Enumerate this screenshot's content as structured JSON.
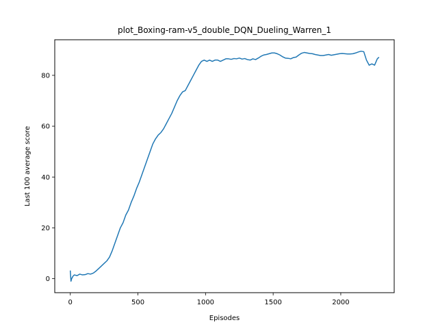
{
  "chart_data": {
    "type": "line",
    "title": "plot_Boxing-ram-v5_double_DQN_Dueling_Warren_1",
    "xlabel": "Episodes",
    "ylabel": "Last 100 average score",
    "xlim": [
      -115,
      2395
    ],
    "ylim": [
      -5.5,
      94
    ],
    "xticks": [
      0,
      500,
      1000,
      1500,
      2000
    ],
    "yticks": [
      0,
      20,
      40,
      60,
      80
    ],
    "grid": false,
    "legend": "none",
    "series": [
      {
        "color": "#1f77b4",
        "x": [
          0,
          5,
          10,
          20,
          30,
          50,
          70,
          90,
          110,
          130,
          150,
          170,
          190,
          210,
          230,
          250,
          270,
          290,
          310,
          330,
          350,
          370,
          390,
          410,
          430,
          450,
          470,
          490,
          510,
          530,
          550,
          570,
          590,
          610,
          630,
          650,
          670,
          690,
          710,
          730,
          750,
          770,
          790,
          810,
          830,
          850,
          870,
          890,
          910,
          930,
          950,
          970,
          990,
          1010,
          1030,
          1050,
          1070,
          1090,
          1110,
          1130,
          1150,
          1170,
          1190,
          1210,
          1230,
          1250,
          1270,
          1290,
          1310,
          1330,
          1350,
          1370,
          1390,
          1410,
          1430,
          1450,
          1470,
          1490,
          1510,
          1530,
          1550,
          1570,
          1590,
          1610,
          1630,
          1650,
          1670,
          1690,
          1710,
          1730,
          1750,
          1770,
          1790,
          1810,
          1830,
          1850,
          1870,
          1890,
          1910,
          1930,
          1950,
          1970,
          1990,
          2010,
          2030,
          2050,
          2070,
          2090,
          2110,
          2130,
          2150,
          2170,
          2190,
          2210,
          2230,
          2250,
          2270,
          2280
        ],
        "y": [
          3,
          -1,
          0,
          1,
          1.5,
          1.2,
          1.8,
          1.5,
          1.6,
          2,
          1.8,
          2.2,
          3,
          4,
          5,
          6,
          7,
          8.5,
          11,
          14,
          17,
          20,
          22,
          25,
          27,
          30,
          32.5,
          35.5,
          38,
          41,
          44,
          47,
          50,
          53,
          55,
          56.5,
          57.5,
          59,
          61,
          63,
          65,
          67.5,
          70,
          72,
          73.5,
          74,
          76,
          78,
          80,
          82,
          84,
          85.5,
          86,
          85.5,
          86,
          85.5,
          86,
          86,
          85.5,
          86,
          86.5,
          86.5,
          86.3,
          86.6,
          86.5,
          86.8,
          86.4,
          86.6,
          86.2,
          86,
          86.5,
          86.2,
          86.8,
          87.5,
          88,
          88.2,
          88.5,
          88.8,
          88.8,
          88.5,
          88,
          87.3,
          86.8,
          86.7,
          86.5,
          87,
          87.2,
          88,
          88.7,
          89,
          88.8,
          88.6,
          88.5,
          88.2,
          88,
          87.8,
          87.8,
          88,
          88.2,
          87.9,
          88.1,
          88.3,
          88.5,
          88.6,
          88.5,
          88.4,
          88.4,
          88.5,
          88.8,
          89.2,
          89.5,
          89.3,
          86,
          84,
          84.5,
          84,
          86.5,
          87
        ]
      }
    ]
  }
}
